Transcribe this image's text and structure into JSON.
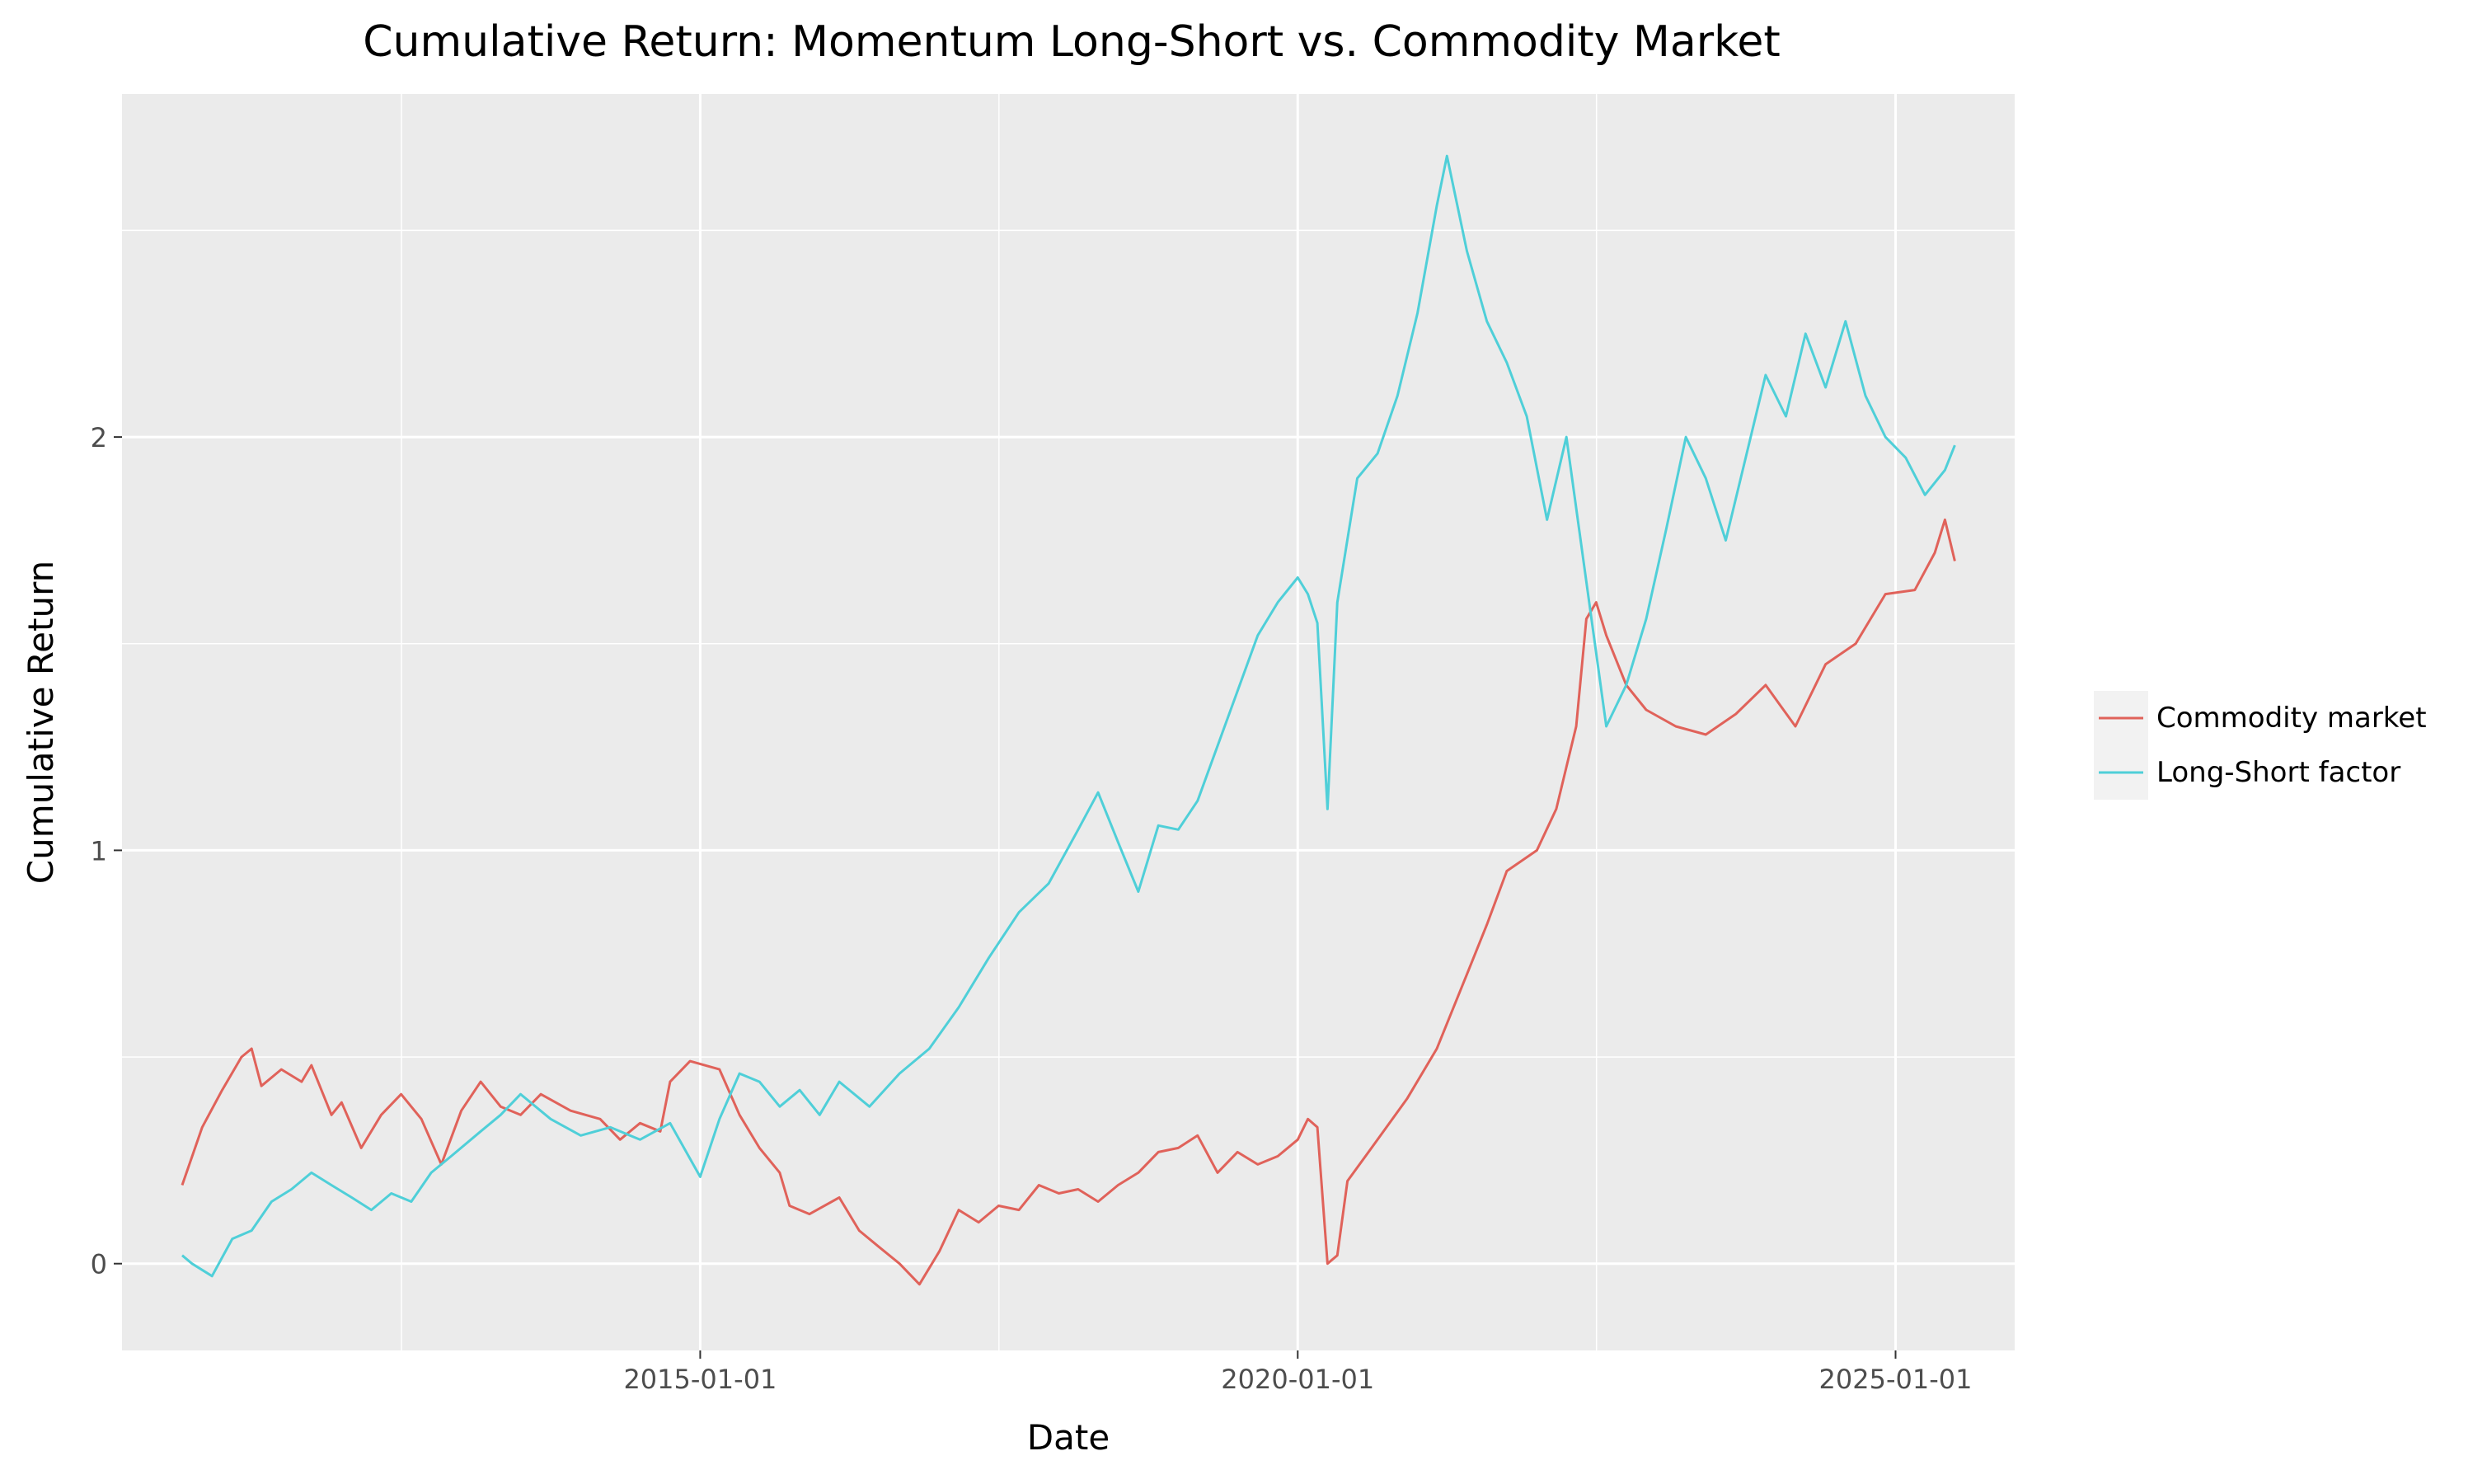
{
  "chart_data": {
    "type": "line",
    "title": "Cumulative Return: Momentum Long-Short vs. Commodity Market",
    "xlabel": "Date",
    "ylabel": "Cumulative Return",
    "xlim": [
      "2010-03-01",
      "2025-12-31"
    ],
    "ylim": [
      -0.21,
      2.83
    ],
    "x_ticks": [
      "2015-01-01",
      "2020-01-01",
      "2025-01-01"
    ],
    "x_minor_ticks": [
      "2012-07-02",
      "2017-07-02",
      "2022-07-02"
    ],
    "y_ticks": [
      0,
      1,
      2
    ],
    "y_minor_ticks": [
      0.5,
      1.5,
      2.5
    ],
    "grid": true,
    "legend_position": "right",
    "series": [
      {
        "name": "Commodity market",
        "color": "#E0625A",
        "points": [
          [
            "2010-09-01",
            0.19
          ],
          [
            "2010-11-01",
            0.33
          ],
          [
            "2011-01-01",
            0.42
          ],
          [
            "2011-03-01",
            0.5
          ],
          [
            "2011-04-01",
            0.52
          ],
          [
            "2011-05-01",
            0.43
          ],
          [
            "2011-07-01",
            0.47
          ],
          [
            "2011-09-01",
            0.44
          ],
          [
            "2011-10-01",
            0.48
          ],
          [
            "2011-12-01",
            0.36
          ],
          [
            "2012-01-01",
            0.39
          ],
          [
            "2012-03-01",
            0.28
          ],
          [
            "2012-05-01",
            0.36
          ],
          [
            "2012-07-01",
            0.41
          ],
          [
            "2012-09-01",
            0.35
          ],
          [
            "2012-11-01",
            0.24
          ],
          [
            "2013-01-01",
            0.37
          ],
          [
            "2013-03-01",
            0.44
          ],
          [
            "2013-05-01",
            0.38
          ],
          [
            "2013-07-01",
            0.36
          ],
          [
            "2013-09-01",
            0.41
          ],
          [
            "2013-12-01",
            0.37
          ],
          [
            "2014-03-01",
            0.35
          ],
          [
            "2014-05-01",
            0.3
          ],
          [
            "2014-07-01",
            0.34
          ],
          [
            "2014-09-01",
            0.32
          ],
          [
            "2014-10-01",
            0.44
          ],
          [
            "2014-12-01",
            0.49
          ],
          [
            "2015-03-01",
            0.47
          ],
          [
            "2015-05-01",
            0.36
          ],
          [
            "2015-07-01",
            0.28
          ],
          [
            "2015-09-01",
            0.22
          ],
          [
            "2015-10-01",
            0.14
          ],
          [
            "2015-12-01",
            0.12
          ],
          [
            "2016-03-01",
            0.16
          ],
          [
            "2016-05-01",
            0.08
          ],
          [
            "2016-07-01",
            0.04
          ],
          [
            "2016-09-01",
            0.0
          ],
          [
            "2016-11-01",
            -0.05
          ],
          [
            "2017-01-01",
            0.03
          ],
          [
            "2017-03-01",
            0.13
          ],
          [
            "2017-05-01",
            0.1
          ],
          [
            "2017-07-01",
            0.14
          ],
          [
            "2017-09-01",
            0.13
          ],
          [
            "2017-11-01",
            0.19
          ],
          [
            "2018-01-01",
            0.17
          ],
          [
            "2018-03-01",
            0.18
          ],
          [
            "2018-05-01",
            0.15
          ],
          [
            "2018-07-01",
            0.19
          ],
          [
            "2018-09-01",
            0.22
          ],
          [
            "2018-11-01",
            0.27
          ],
          [
            "2019-01-01",
            0.28
          ],
          [
            "2019-03-01",
            0.31
          ],
          [
            "2019-05-01",
            0.22
          ],
          [
            "2019-07-01",
            0.27
          ],
          [
            "2019-09-01",
            0.24
          ],
          [
            "2019-11-01",
            0.26
          ],
          [
            "2020-01-01",
            0.3
          ],
          [
            "2020-02-01",
            0.35
          ],
          [
            "2020-03-01",
            0.33
          ],
          [
            "2020-04-01",
            0.0
          ],
          [
            "2020-05-01",
            0.02
          ],
          [
            "2020-06-01",
            0.2
          ],
          [
            "2020-09-01",
            0.3
          ],
          [
            "2020-12-01",
            0.4
          ],
          [
            "2021-03-01",
            0.52
          ],
          [
            "2021-06-01",
            0.7
          ],
          [
            "2021-08-01",
            0.82
          ],
          [
            "2021-10-01",
            0.95
          ],
          [
            "2022-01-01",
            1.0
          ],
          [
            "2022-03-01",
            1.1
          ],
          [
            "2022-05-01",
            1.3
          ],
          [
            "2022-06-01",
            1.56
          ],
          [
            "2022-07-01",
            1.6
          ],
          [
            "2022-08-01",
            1.52
          ],
          [
            "2022-10-01",
            1.4
          ],
          [
            "2022-12-01",
            1.34
          ],
          [
            "2023-03-01",
            1.3
          ],
          [
            "2023-06-01",
            1.28
          ],
          [
            "2023-09-01",
            1.33
          ],
          [
            "2023-12-01",
            1.4
          ],
          [
            "2024-03-01",
            1.3
          ],
          [
            "2024-06-01",
            1.45
          ],
          [
            "2024-09-01",
            1.5
          ],
          [
            "2024-12-01",
            1.62
          ],
          [
            "2025-03-01",
            1.63
          ],
          [
            "2025-05-01",
            1.72
          ],
          [
            "2025-06-01",
            1.8
          ],
          [
            "2025-07-01",
            1.7
          ]
        ]
      },
      {
        "name": "Long-Short factor",
        "color": "#4FCFD8",
        "points": [
          [
            "2010-09-01",
            0.02
          ],
          [
            "2010-10-01",
            0.0
          ],
          [
            "2010-12-01",
            -0.03
          ],
          [
            "2011-02-01",
            0.06
          ],
          [
            "2011-04-01",
            0.08
          ],
          [
            "2011-06-01",
            0.15
          ],
          [
            "2011-08-01",
            0.18
          ],
          [
            "2011-10-01",
            0.22
          ],
          [
            "2011-12-01",
            0.19
          ],
          [
            "2012-02-01",
            0.16
          ],
          [
            "2012-04-01",
            0.13
          ],
          [
            "2012-06-01",
            0.17
          ],
          [
            "2012-08-01",
            0.15
          ],
          [
            "2012-10-01",
            0.22
          ],
          [
            "2012-12-01",
            0.26
          ],
          [
            "2013-03-01",
            0.32
          ],
          [
            "2013-05-01",
            0.36
          ],
          [
            "2013-07-01",
            0.41
          ],
          [
            "2013-10-01",
            0.35
          ],
          [
            "2014-01-01",
            0.31
          ],
          [
            "2014-04-01",
            0.33
          ],
          [
            "2014-07-01",
            0.3
          ],
          [
            "2014-10-01",
            0.34
          ],
          [
            "2015-01-01",
            0.21
          ],
          [
            "2015-03-01",
            0.35
          ],
          [
            "2015-05-01",
            0.46
          ],
          [
            "2015-07-01",
            0.44
          ],
          [
            "2015-09-01",
            0.38
          ],
          [
            "2015-11-01",
            0.42
          ],
          [
            "2016-01-01",
            0.36
          ],
          [
            "2016-03-01",
            0.44
          ],
          [
            "2016-06-01",
            0.38
          ],
          [
            "2016-09-01",
            0.46
          ],
          [
            "2016-12-01",
            0.52
          ],
          [
            "2017-03-01",
            0.62
          ],
          [
            "2017-06-01",
            0.74
          ],
          [
            "2017-09-01",
            0.85
          ],
          [
            "2017-12-01",
            0.92
          ],
          [
            "2018-03-01",
            1.05
          ],
          [
            "2018-05-01",
            1.14
          ],
          [
            "2018-07-01",
            1.02
          ],
          [
            "2018-09-01",
            0.9
          ],
          [
            "2018-11-01",
            1.06
          ],
          [
            "2019-01-01",
            1.05
          ],
          [
            "2019-03-01",
            1.12
          ],
          [
            "2019-06-01",
            1.32
          ],
          [
            "2019-09-01",
            1.52
          ],
          [
            "2019-11-01",
            1.6
          ],
          [
            "2020-01-01",
            1.66
          ],
          [
            "2020-02-01",
            1.62
          ],
          [
            "2020-03-01",
            1.55
          ],
          [
            "2020-04-01",
            1.1
          ],
          [
            "2020-05-01",
            1.6
          ],
          [
            "2020-07-01",
            1.9
          ],
          [
            "2020-09-01",
            1.96
          ],
          [
            "2020-11-01",
            2.1
          ],
          [
            "2021-01-01",
            2.3
          ],
          [
            "2021-03-01",
            2.56
          ],
          [
            "2021-04-01",
            2.68
          ],
          [
            "2021-06-01",
            2.45
          ],
          [
            "2021-08-01",
            2.28
          ],
          [
            "2021-10-01",
            2.18
          ],
          [
            "2021-12-01",
            2.05
          ],
          [
            "2022-02-01",
            1.8
          ],
          [
            "2022-04-01",
            2.0
          ],
          [
            "2022-06-01",
            1.65
          ],
          [
            "2022-08-01",
            1.3
          ],
          [
            "2022-10-01",
            1.4
          ],
          [
            "2022-12-01",
            1.56
          ],
          [
            "2023-02-01",
            1.78
          ],
          [
            "2023-04-01",
            2.0
          ],
          [
            "2023-06-01",
            1.9
          ],
          [
            "2023-08-01",
            1.75
          ],
          [
            "2023-10-01",
            1.95
          ],
          [
            "2023-12-01",
            2.15
          ],
          [
            "2024-02-01",
            2.05
          ],
          [
            "2024-04-01",
            2.25
          ],
          [
            "2024-06-01",
            2.12
          ],
          [
            "2024-08-01",
            2.28
          ],
          [
            "2024-10-01",
            2.1
          ],
          [
            "2024-12-01",
            2.0
          ],
          [
            "2025-02-01",
            1.95
          ],
          [
            "2025-04-01",
            1.86
          ],
          [
            "2025-06-01",
            1.92
          ],
          [
            "2025-07-01",
            1.98
          ]
        ]
      }
    ]
  }
}
